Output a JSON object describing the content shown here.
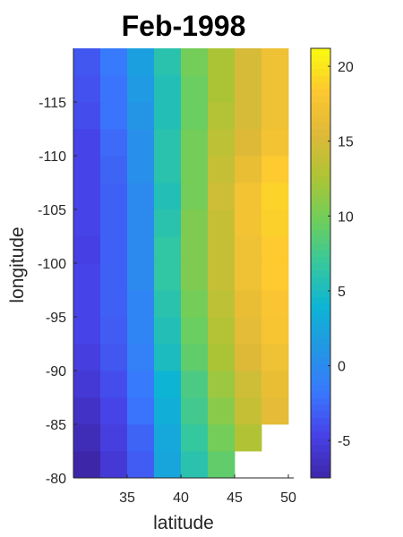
{
  "chart_data": {
    "type": "heatmap",
    "title": "Feb-1998",
    "xlabel": "latitude",
    "ylabel": "longitude",
    "x": [
      31.25,
      33.75,
      36.25,
      38.75,
      41.25,
      43.75,
      46.25,
      48.75
    ],
    "y": [
      -81.25,
      -83.75,
      -86.25,
      -88.75,
      -91.25,
      -93.75,
      -96.25,
      -98.75,
      -101.25,
      -103.75,
      -106.25,
      -108.75,
      -111.25,
      -113.75,
      -116.25,
      -118.75
    ],
    "xlim": [
      30,
      50.5
    ],
    "ylim": [
      -80,
      -120
    ],
    "xticks": [
      35,
      40,
      45,
      50
    ],
    "yticks": [
      -80,
      -85,
      -90,
      -95,
      -100,
      -105,
      -110,
      -115
    ],
    "z": [
      [
        -7.5,
        -5.5,
        -3.2,
        2.5,
        6.0,
        9.0,
        null,
        null
      ],
      [
        -6.8,
        -5.0,
        -2.8,
        2.8,
        6.8,
        10.0,
        12.8,
        null
      ],
      [
        -6.2,
        -4.5,
        -2.0,
        3.5,
        7.5,
        11.0,
        14.0,
        16.0
      ],
      [
        -5.5,
        -4.0,
        -1.5,
        4.0,
        8.0,
        11.8,
        14.5,
        16.5
      ],
      [
        -5.0,
        -3.5,
        -1.0,
        5.0,
        9.0,
        12.5,
        15.5,
        17.0
      ],
      [
        -4.5,
        -3.2,
        -0.5,
        5.5,
        9.5,
        13.0,
        16.0,
        17.8
      ],
      [
        -4.5,
        -3.0,
        -0.5,
        6.0,
        10.0,
        13.5,
        16.5,
        18.0
      ],
      [
        -4.5,
        -3.0,
        0.0,
        6.5,
        10.5,
        14.0,
        17.0,
        18.5
      ],
      [
        -4.8,
        -3.0,
        0.0,
        6.5,
        10.5,
        14.0,
        17.0,
        18.5
      ],
      [
        -4.5,
        -3.0,
        0.0,
        6.0,
        10.5,
        14.0,
        17.5,
        18.8
      ],
      [
        -4.5,
        -3.0,
        0.0,
        5.5,
        10.0,
        14.5,
        17.5,
        19.0
      ],
      [
        -4.5,
        -2.8,
        0.5,
        6.0,
        10.0,
        14.0,
        16.5,
        18.5
      ],
      [
        -4.5,
        -2.5,
        0.5,
        6.0,
        10.0,
        13.5,
        15.5,
        17.5
      ],
      [
        -4.0,
        -2.0,
        1.0,
        5.5,
        9.5,
        13.0,
        15.0,
        17.0
      ],
      [
        -3.8,
        -2.0,
        1.5,
        5.5,
        9.5,
        12.5,
        15.0,
        17.0
      ],
      [
        -3.5,
        -1.5,
        2.0,
        6.0,
        10.0,
        12.5,
        15.0,
        17.0
      ]
    ],
    "colorbar": {
      "limits": [
        -7.5,
        21.2
      ],
      "ticks": [
        -5,
        0,
        5,
        10,
        15,
        20
      ],
      "colormap": "parula",
      "location": "right"
    },
    "grid": false
  }
}
